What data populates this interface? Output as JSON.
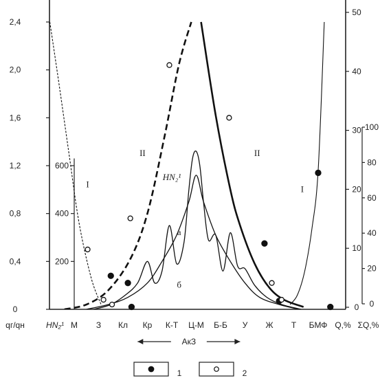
{
  "chart_data": {
    "type": "line",
    "categories": [
      "M",
      "З",
      "Кл",
      "Кр",
      "К-Т",
      "Ц-М",
      "Б-Б",
      "У",
      "Ж",
      "Т",
      "БМФ"
    ],
    "axes": {
      "left_outer": {
        "label": "qг/qн",
        "ticks": [
          "0",
          "0,4",
          "0,8",
          "1,2",
          "1,6",
          "2,0",
          "2,4"
        ],
        "range": [
          0,
          2.4
        ]
      },
      "left_inner": {
        "label": "HN₂¹",
        "ticks": [
          "200",
          "400",
          "600"
        ],
        "range": [
          0,
          600
        ]
      },
      "right_inner": {
        "label": "Q,%",
        "ticks": [
          "0",
          "10",
          "20",
          "30",
          "40",
          "50"
        ],
        "range": [
          0,
          50
        ]
      },
      "right_outer": {
        "label": "ΣQ,%",
        "ticks": [
          "0",
          "20",
          "40",
          "60",
          "80",
          "100"
        ],
        "range": [
          0,
          100
        ]
      }
    },
    "axis_group_label": "АкЗ",
    "series": [
      {
        "name": "I",
        "style": "dashed-thin",
        "x": [
          -1.0,
          -0.6,
          -0.2,
          0.2,
          0.7,
          1.1
        ],
        "y": [
          2.4,
          1.85,
          1.28,
          0.72,
          0.26,
          0.04
        ]
      },
      {
        "name": "I",
        "style": "solid-thin",
        "x": [
          8.85,
          9.15,
          9.45,
          9.75,
          10.0,
          10.25
        ],
        "y": [
          0.04,
          0.12,
          0.32,
          0.68,
          1.16,
          2.4
        ]
      },
      {
        "name": "II",
        "style": "dashed-bold",
        "x": [
          -0.4,
          0.5,
          1.4,
          2.3,
          3.0,
          3.7,
          4.3,
          4.8
        ],
        "y": [
          0.0,
          0.04,
          0.16,
          0.42,
          0.8,
          1.44,
          2.05,
          2.4
        ]
      },
      {
        "name": "II",
        "style": "solid-bold",
        "x": [
          5.2,
          5.8,
          6.4,
          6.8,
          7.4,
          8.0,
          8.6,
          9.4
        ],
        "y": [
          2.4,
          1.62,
          1.0,
          0.7,
          0.38,
          0.18,
          0.08,
          0.02
        ]
      },
      {
        "name": "a",
        "style": "solid-smooth",
        "x": [
          0.5,
          1.4,
          2.2,
          3.0,
          3.6,
          4.2,
          4.7,
          5.0,
          5.3,
          5.8,
          6.4,
          7.0,
          7.6,
          8.4,
          9.2
        ],
        "y": [
          0.0,
          0.04,
          0.1,
          0.22,
          0.4,
          0.62,
          0.9,
          1.12,
          0.9,
          0.62,
          0.4,
          0.22,
          0.1,
          0.04,
          0.0
        ]
      },
      {
        "name": "б",
        "style": "solid-oscillating",
        "x": [
          0.8,
          1.5,
          2.1,
          2.6,
          3.0,
          3.3,
          3.6,
          3.9,
          4.2,
          4.5,
          4.7,
          4.85,
          5.0,
          5.15,
          5.3,
          5.5,
          5.8,
          6.1,
          6.4,
          6.7,
          7.0,
          7.4,
          7.9,
          8.5,
          9.3
        ],
        "y": [
          0.0,
          0.04,
          0.12,
          0.22,
          0.4,
          0.22,
          0.32,
          0.7,
          0.38,
          0.56,
          1.0,
          1.26,
          1.32,
          1.2,
          0.9,
          0.58,
          0.62,
          0.32,
          0.64,
          0.36,
          0.34,
          0.2,
          0.1,
          0.04,
          0.0
        ]
      },
      {
        "name": "1",
        "style": "markers-filled",
        "x": [
          1.5,
          2.2,
          2.35,
          7.8,
          8.4,
          10.0,
          10.5
        ],
        "y": [
          0.28,
          0.22,
          0.02,
          0.55,
          0.07,
          1.14,
          0.02
        ]
      },
      {
        "name": "2",
        "style": "markers-open",
        "x": [
          0.55,
          1.2,
          1.55,
          2.3,
          3.9,
          6.35,
          8.1,
          8.5
        ],
        "y": [
          0.5,
          0.08,
          0.04,
          0.76,
          2.04,
          1.6,
          0.22,
          0.08
        ]
      }
    ],
    "annotations": [
      {
        "text": "I",
        "at": [
          0.55,
          1.02
        ]
      },
      {
        "text": "I",
        "at": [
          9.35,
          0.98
        ]
      },
      {
        "text": "II",
        "at": [
          2.8,
          1.28
        ]
      },
      {
        "text": "II",
        "at": [
          7.5,
          1.28
        ]
      },
      {
        "text": "HN₂¹",
        "at": [
          4.0,
          1.08
        ]
      },
      {
        "text": "а",
        "at": [
          4.3,
          0.62
        ]
      },
      {
        "text": "б",
        "at": [
          4.3,
          0.18
        ]
      }
    ],
    "legend": {
      "placement": "bottom-center",
      "items": [
        {
          "label": "1",
          "marker": "filled-circle"
        },
        {
          "label": "2",
          "marker": "open-circle"
        }
      ]
    },
    "grid": false
  }
}
